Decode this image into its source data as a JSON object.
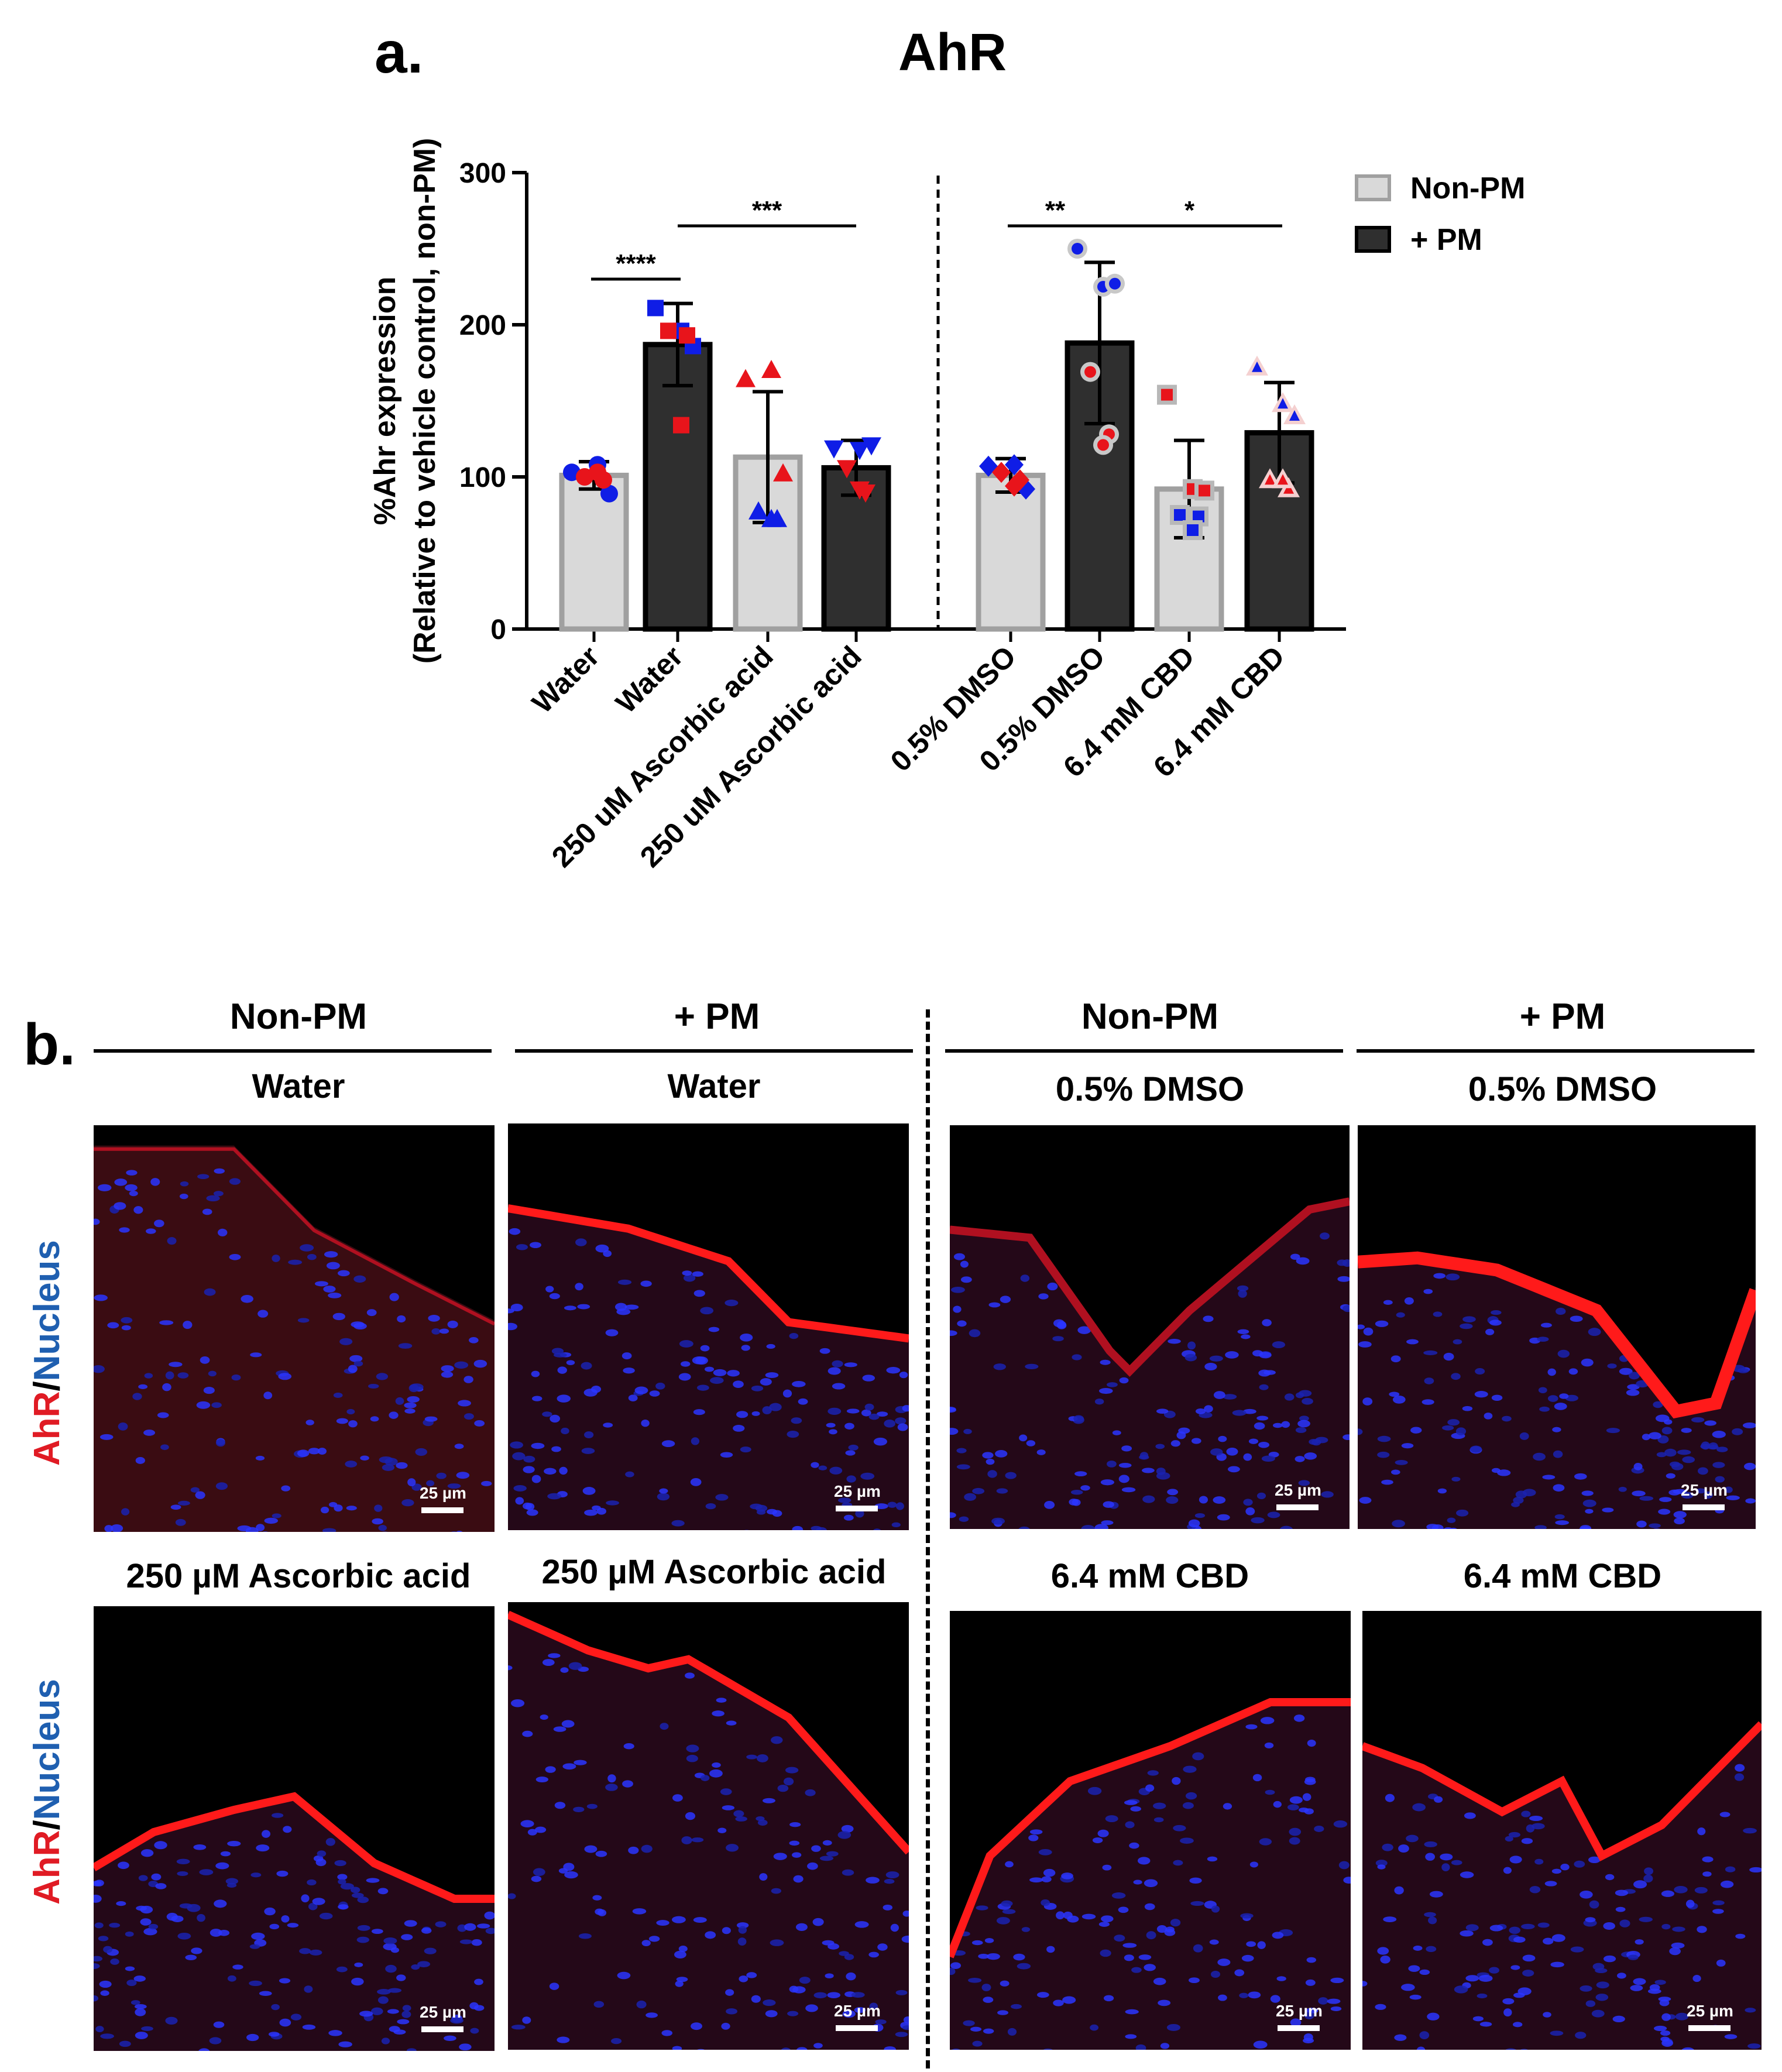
{
  "panel_a": {
    "letter": "a.",
    "title": "AhR"
  },
  "chart_data": {
    "type": "bar",
    "title": "AhR",
    "ylabel_line1": "%Ahr expression",
    "ylabel_line2": "(Relative to vehicle control, non-PM)",
    "ylim": [
      0,
      300
    ],
    "yticks": [
      0,
      100,
      200,
      300
    ],
    "grid": false,
    "legend_position": "top-right",
    "legend": [
      {
        "label": "Non-PM",
        "fill": "#d9d9d9",
        "stroke": "#a0a0a0"
      },
      {
        "label": "+ PM",
        "fill": "#2f2f2f",
        "stroke": "#000000"
      }
    ],
    "categories": [
      "Water",
      "Water",
      "250 uM Ascorbic acid",
      "250 uM Ascorbic acid",
      "0.5% DMSO",
      "0.5% DMSO",
      "6.4 mM CBD",
      "6.4 mM CBD"
    ],
    "groups": [
      "Non-PM",
      "+ PM",
      "Non-PM",
      "+ PM",
      "Non-PM",
      "+ PM",
      "Non-PM",
      "+ PM"
    ],
    "values": [
      101,
      187,
      113,
      106,
      101,
      188,
      92,
      129
    ],
    "errors": [
      9,
      27,
      43,
      18,
      11,
      53,
      32,
      33
    ],
    "points": [
      {
        "marker": "circle",
        "pts": [
          {
            "y": 103,
            "c": "blue"
          },
          {
            "y": 108,
            "c": "blue"
          },
          {
            "y": 89,
            "c": "blue"
          },
          {
            "y": 100,
            "c": "red"
          },
          {
            "y": 98,
            "c": "red"
          },
          {
            "y": 103,
            "c": "red"
          }
        ]
      },
      {
        "marker": "square",
        "pts": [
          {
            "y": 211,
            "c": "blue"
          },
          {
            "y": 196,
            "c": "blue"
          },
          {
            "y": 186,
            "c": "blue"
          },
          {
            "y": 196,
            "c": "red"
          },
          {
            "y": 193,
            "c": "red"
          },
          {
            "y": 134,
            "c": "red"
          }
        ]
      },
      {
        "marker": "triangle",
        "pts": [
          {
            "y": 164,
            "c": "red"
          },
          {
            "y": 170,
            "c": "red"
          },
          {
            "y": 102,
            "c": "red"
          },
          {
            "y": 77,
            "c": "blue"
          },
          {
            "y": 72,
            "c": "blue"
          },
          {
            "y": 72,
            "c": "blue"
          }
        ]
      },
      {
        "marker": "triangle-down",
        "pts": [
          {
            "y": 119,
            "c": "blue"
          },
          {
            "y": 118,
            "c": "blue"
          },
          {
            "y": 121,
            "c": "blue"
          },
          {
            "y": 106,
            "c": "red"
          },
          {
            "y": 90,
            "c": "red"
          },
          {
            "y": 92,
            "c": "red"
          }
        ]
      },
      {
        "marker": "diamond",
        "pts": [
          {
            "y": 107,
            "c": "blue"
          },
          {
            "y": 108,
            "c": "blue"
          },
          {
            "y": 92,
            "c": "blue"
          },
          {
            "y": 103,
            "c": "red"
          },
          {
            "y": 98,
            "c": "red"
          },
          {
            "y": 94,
            "c": "red"
          }
        ]
      },
      {
        "marker": "circle-ring",
        "pts": [
          {
            "y": 250,
            "c": "blue"
          },
          {
            "y": 225,
            "c": "blue"
          },
          {
            "y": 227,
            "c": "blue"
          },
          {
            "y": 169,
            "c": "red"
          },
          {
            "y": 128,
            "c": "red"
          },
          {
            "y": 121,
            "c": "red"
          }
        ]
      },
      {
        "marker": "square-ring",
        "pts": [
          {
            "y": 154,
            "c": "red"
          },
          {
            "y": 92,
            "c": "red"
          },
          {
            "y": 91,
            "c": "red"
          },
          {
            "y": 75,
            "c": "blue"
          },
          {
            "y": 74,
            "c": "blue"
          },
          {
            "y": 65,
            "c": "blue"
          }
        ]
      },
      {
        "marker": "triangle-ring",
        "pts": [
          {
            "y": 172,
            "c": "blue"
          },
          {
            "y": 148,
            "c": "blue"
          },
          {
            "y": 140,
            "c": "blue"
          },
          {
            "y": 98,
            "c": "red"
          },
          {
            "y": 92,
            "c": "red"
          },
          {
            "y": 98,
            "c": "red"
          }
        ]
      }
    ],
    "significance": [
      {
        "label": "****",
        "from": 0,
        "to": 1,
        "y": 230
      },
      {
        "label": "***",
        "from": 1,
        "to": 3,
        "y": 265
      },
      {
        "label": "**",
        "from": 4,
        "to": 5,
        "y": 265
      },
      {
        "label": "*",
        "from": 5,
        "to": 7,
        "y": 265
      }
    ],
    "colors": {
      "red": "#e8141b",
      "blue": "#0f1de6"
    }
  },
  "panel_b": {
    "letter": "b.",
    "headers": [
      {
        "label": "Non-PM"
      },
      {
        "label": "+ PM"
      },
      {
        "label": "Non-PM"
      },
      {
        "label": "+ PM"
      }
    ],
    "row1_labels": [
      "Water",
      "Water",
      "0.5% DMSO",
      "0.5% DMSO"
    ],
    "row2_labels": [
      "250 µM Ascorbic acid",
      "250 µM Ascorbic acid",
      "6.4 mM CBD",
      "6.4 mM CBD"
    ],
    "scale_label": "25 µm",
    "side_label_red": "AhR",
    "side_label_slash": "/",
    "side_label_blue": "Nucleus",
    "colors": {
      "ahr": "#e01b24",
      "nucleus": "#1f5fb0"
    }
  }
}
